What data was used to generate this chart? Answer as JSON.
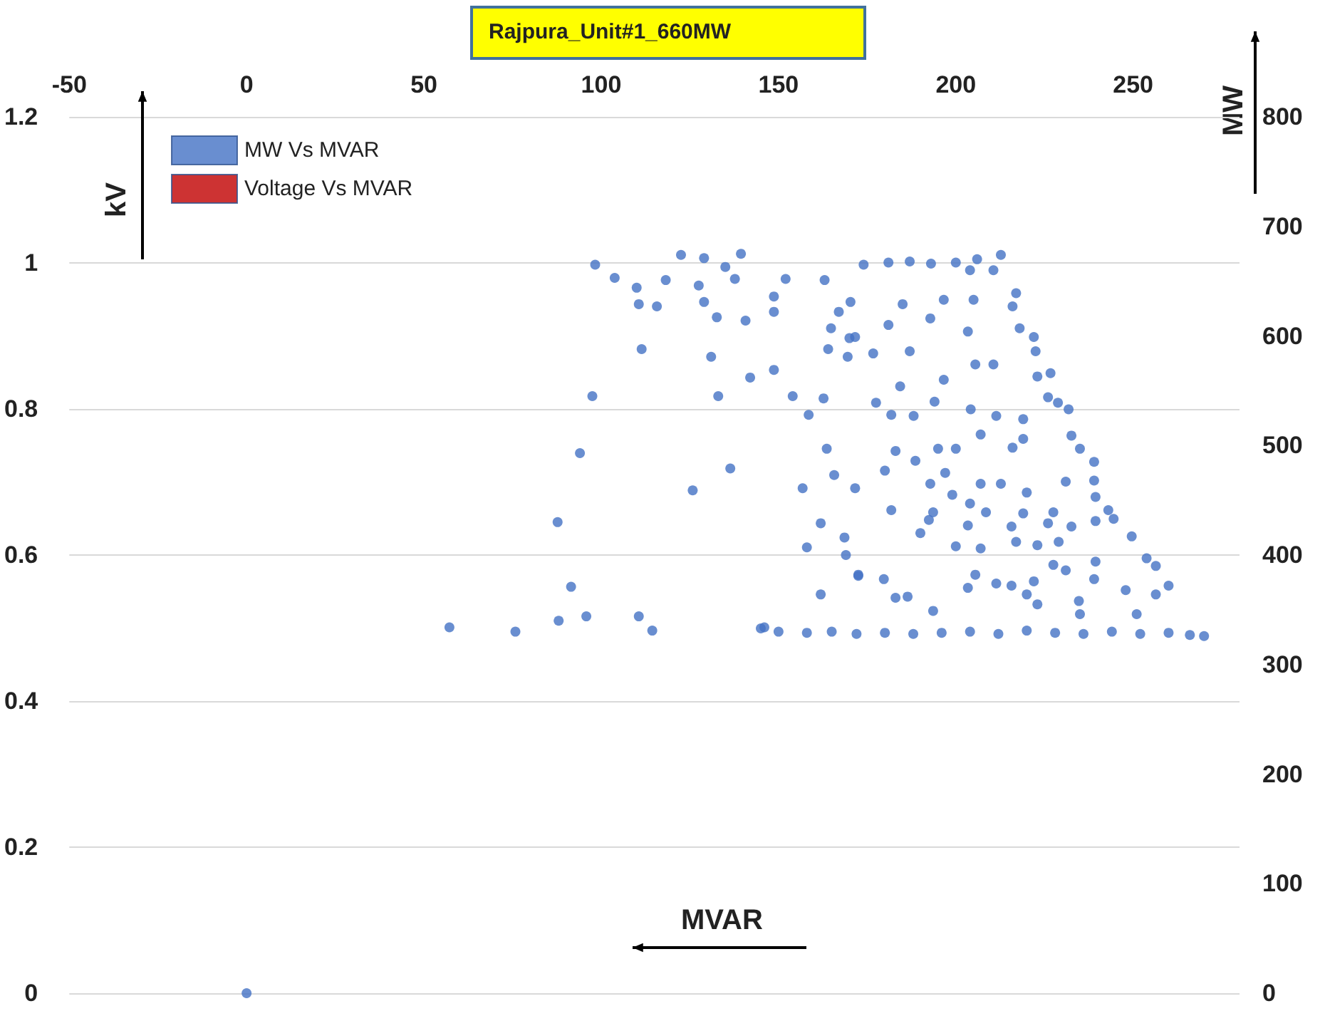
{
  "chart_data": {
    "type": "scatter",
    "title": "Rajpura_Unit#1_660MW",
    "xlabel": "MVAR",
    "ylabel": "kV",
    "y2label": "MW",
    "xlim": [
      -50,
      280
    ],
    "xticks": [
      -50,
      0,
      50,
      100,
      150,
      200,
      250
    ],
    "ylim": [
      0,
      1.2
    ],
    "yticks": [
      0,
      0.2,
      0.4,
      0.6,
      0.8,
      1,
      1.2
    ],
    "y2lim": [
      0,
      800
    ],
    "y2ticks": [
      0,
      100,
      200,
      300,
      400,
      500,
      600,
      700,
      800
    ],
    "grid": "y",
    "legend": "top left",
    "marker": "circle",
    "series": [
      {
        "name": "MW Vs MVAR",
        "color": "#4472c4",
        "axis": "y2",
        "x": [
          0,
          98.3,
          103.8,
          110,
          110.6,
          115.7,
          111.4,
          97.5,
          94,
          87.7,
          91.5,
          95.8,
          88,
          57.2,
          75.8,
          110.6,
          114.4,
          122.5,
          118.2,
          129,
          127.5,
          129,
          132.6,
          140.7,
          131,
          142,
          148.7,
          133,
          154,
          136.4,
          125.8,
          156.8,
          158.5,
          162.7,
          161.9,
          158,
          168.6,
          172.5,
          161.9,
          163.6,
          165.7,
          146,
          148.7,
          148.7,
          137.7,
          135,
          139.4,
          152,
          163,
          167,
          164.8,
          164,
          169.5,
          170,
          174,
          181,
          187,
          193,
          200,
          206,
          212.7,
          210.6,
          204,
          217,
          216,
          218,
          222,
          222.5,
          223,
          226.7,
          226,
          228.8,
          231.8,
          232.6,
          235,
          239,
          239,
          239.4,
          243,
          244.5,
          239.4,
          249.6,
          253.8,
          256.4,
          260,
          256.4,
          247.9,
          145,
          150,
          158,
          165,
          172,
          180,
          188,
          196,
          204,
          212,
          220,
          228,
          236,
          244,
          252,
          260,
          266,
          270,
          170.3,
          181,
          171.6,
          176.7,
          187,
          185,
          196.6,
          205,
          192.8,
          203.4,
          205.5,
          210.6,
          196.6,
          184.3,
          177.5,
          181.8,
          188.1,
          194,
          204.2,
          211.4,
          219,
          207,
          219,
          195,
          200,
          183,
          216,
          188.6,
          180,
          197,
          207,
          212.7,
          192.8,
          171.6,
          199,
          220,
          231,
          181.8,
          193.6,
          204,
          208.5,
          219,
          227.5,
          192.4,
          203.4,
          215.7,
          226,
          232.6,
          190,
          200,
          207,
          217,
          223,
          229,
          169,
          227.5,
          231,
          239.4,
          172.5,
          179.7,
          205.5,
          211.4,
          215.7,
          222,
          239,
          183,
          186.4,
          203.4,
          220,
          223,
          193.6,
          234.7,
          235,
          251
        ],
        "values": [
          0,
          665,
          653,
          644,
          629,
          627,
          588,
          545,
          493,
          430,
          371,
          344,
          340,
          334,
          330,
          344,
          331,
          674,
          651,
          671,
          646,
          631,
          617,
          614,
          581,
          562,
          569,
          545,
          545,
          479,
          459,
          461,
          528,
          543,
          429,
          407,
          416,
          381,
          364,
          497,
          473,
          334,
          636,
          622,
          652,
          663,
          675,
          652,
          651,
          622,
          607,
          588,
          581,
          598,
          665,
          667,
          668,
          666,
          667,
          670,
          674,
          660,
          660,
          639,
          627,
          607,
          599,
          586,
          563,
          566,
          544,
          539,
          533,
          509,
          497,
          485,
          468,
          453,
          441,
          433,
          431,
          417,
          397,
          390,
          372,
          364,
          368,
          333,
          330,
          329,
          330,
          328,
          329,
          328,
          329,
          330,
          328,
          331,
          329,
          328,
          330,
          328,
          329,
          327,
          326,
          631,
          610,
          599,
          584,
          586,
          629,
          633,
          633,
          616,
          604,
          574,
          574,
          560,
          554,
          539,
          528,
          527,
          540,
          533,
          527,
          524,
          510,
          506,
          497,
          497,
          495,
          498,
          486,
          477,
          475,
          465,
          465,
          465,
          461,
          455,
          457,
          467,
          441,
          439,
          447,
          439,
          438,
          439,
          432,
          427,
          426,
          429,
          426,
          420,
          408,
          406,
          412,
          409,
          412,
          400,
          391,
          386,
          394,
          382,
          378,
          382,
          374,
          372,
          376,
          378,
          361,
          362,
          370,
          364,
          355,
          349,
          358,
          346,
          346
        ]
      },
      {
        "name": "Voltage Vs MVAR",
        "color": "#c00000"
      }
    ]
  }
}
